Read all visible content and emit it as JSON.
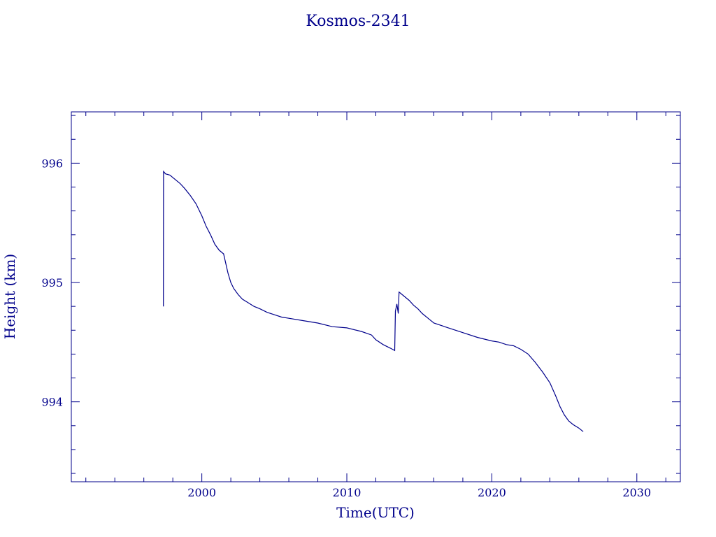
{
  "chart_data": {
    "type": "line",
    "title": "Kosmos-2341",
    "xlabel": "Time(UTC)",
    "ylabel": "Height (km)",
    "xlim": [
      1991,
      2033
    ],
    "ylim": [
      993.33,
      996.43
    ],
    "x_ticks": [
      "2000",
      "2010",
      "2020",
      "2030"
    ],
    "y_ticks": [
      "994",
      "995",
      "996"
    ],
    "grid": false,
    "color": "#00008b",
    "series": [
      {
        "x": [
          1997.35,
          1997.36,
          1997.5,
          1997.8,
          1998.0,
          1998.2,
          1998.5,
          1998.8,
          1999.2,
          1999.6,
          2000.0,
          2000.3,
          2000.6,
          2000.9,
          2001.2,
          2001.5,
          2001.8,
          2002.0,
          2002.2,
          2002.5,
          2002.8,
          2003.2,
          2003.6,
          2004.0,
          2004.5,
          2005.0,
          2005.5,
          2006.0,
          2007.0,
          2008.0,
          2009.0,
          2010.0,
          2011.0,
          2011.7,
          2012.0,
          2012.5,
          2013.0,
          2013.3,
          2013.35,
          2013.45,
          2013.55,
          2013.6,
          2013.7,
          2014.0,
          2014.3,
          2014.6,
          2014.9,
          2015.2,
          2015.6,
          2016.0,
          2017.0,
          2018.0,
          2019.0,
          2020.0,
          2020.5,
          2021.0,
          2021.5,
          2022.0,
          2022.5,
          2023.0,
          2023.5,
          2024.0,
          2024.4,
          2024.7,
          2025.0,
          2025.3,
          2025.6,
          2026.0,
          2026.3
        ],
        "y": [
          994.8,
          995.93,
          995.91,
          995.9,
          995.88,
          995.86,
          995.83,
          995.79,
          995.73,
          995.66,
          995.56,
          995.47,
          995.4,
          995.32,
          995.27,
          995.24,
          995.08,
          995.0,
          994.95,
          994.9,
          994.86,
          994.83,
          994.8,
          994.78,
          994.75,
          994.73,
          994.71,
          994.7,
          994.68,
          994.66,
          994.63,
          994.62,
          994.59,
          994.56,
          994.52,
          994.48,
          994.45,
          994.43,
          994.76,
          994.82,
          994.74,
          994.92,
          994.91,
          994.88,
          994.85,
          994.81,
          994.78,
          994.74,
          994.7,
          994.66,
          994.62,
          994.58,
          994.54,
          994.51,
          994.5,
          994.48,
          994.47,
          994.44,
          994.4,
          994.33,
          994.25,
          994.16,
          994.05,
          993.96,
          993.89,
          993.84,
          993.81,
          993.78,
          993.75
        ]
      }
    ]
  }
}
